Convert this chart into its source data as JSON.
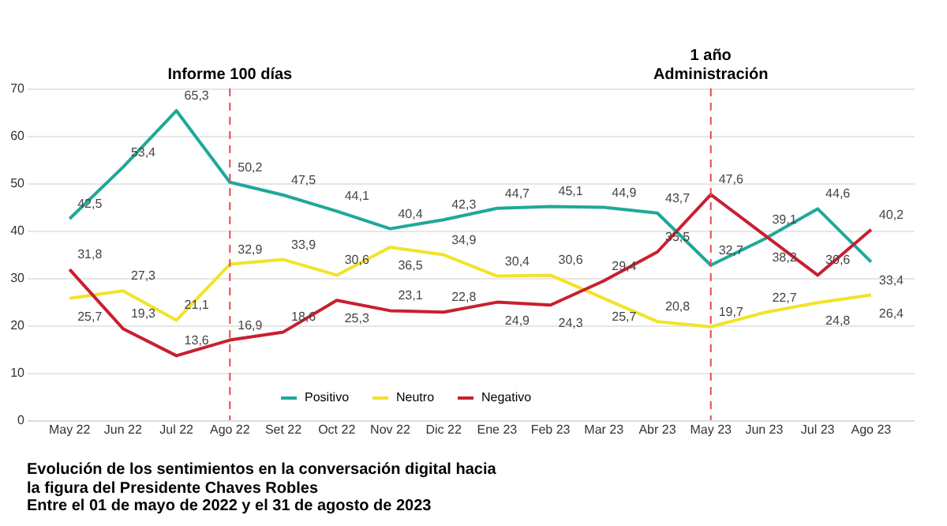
{
  "chart_data": {
    "type": "line",
    "title": "Evolución de los sentimientos en la conversación digital hacia la figura del Presidente Chaves Robles",
    "subtitle": "Entre el 01 de mayo de 2022 y el 31 de agosto de 2023",
    "categories": [
      "May 22",
      "Jun 22",
      "Jul 22",
      "Ago 22",
      "Set 22",
      "Oct 22",
      "Nov 22",
      "Dic 22",
      "Ene 23",
      "Feb 23",
      "Mar 23",
      "Abr 23",
      "May 23",
      "Jun 23",
      "Jul 23",
      "Ago 23"
    ],
    "series": [
      {
        "name": "Positivo",
        "color": "#1fa898",
        "values": [
          42.5,
          53.4,
          65.3,
          50.2,
          47.5,
          44.1,
          40.4,
          42.3,
          44.7,
          45.1,
          44.9,
          43.7,
          32.7,
          38.2,
          44.6,
          33.4
        ],
        "value_labels": [
          "42,5",
          "53,4",
          "65,3",
          "50,2",
          "47,5",
          "44,1",
          "40,4",
          "42,3",
          "44,7",
          "45,1",
          "44,9",
          "43,7",
          "32,7",
          "38,2",
          "44,6",
          "33,4"
        ]
      },
      {
        "name": "Neutro",
        "color": "#f2e32a",
        "values": [
          25.7,
          27.3,
          21.1,
          32.9,
          33.9,
          30.6,
          36.5,
          34.9,
          30.4,
          30.6,
          25.7,
          20.8,
          19.7,
          22.7,
          24.8,
          26.4
        ],
        "value_labels": [
          "25,7",
          "27,3",
          "21,1",
          "32,9",
          "33,9",
          "30,6",
          "36,5",
          "34,9",
          "30,4",
          "30,6",
          "25,7",
          "20,8",
          "19,7",
          "22,7",
          "24,8",
          "26,4"
        ]
      },
      {
        "name": "Negativo",
        "color": "#c8202f",
        "values": [
          31.8,
          19.3,
          13.6,
          16.9,
          18.6,
          25.3,
          23.1,
          22.8,
          24.9,
          24.3,
          29.4,
          35.5,
          47.6,
          39.1,
          30.6,
          40.2
        ],
        "value_labels": [
          "31,8",
          "19,3",
          "13,6",
          "16,9",
          "18,6",
          "25,3",
          "23,1",
          "22,8",
          "24,9",
          "24,3",
          "29,4",
          "35,5",
          "47,6",
          "39,1",
          "30,6",
          "40,2"
        ]
      }
    ],
    "ylim": [
      0,
      70
    ],
    "yticks": [
      0,
      10,
      20,
      30,
      40,
      50,
      60,
      70
    ],
    "grid": "y",
    "legend": "bottom",
    "data_labels": true,
    "line_style": "solid",
    "marker": "none",
    "ref_lines": [
      {
        "axis": "x",
        "value": "Ago 22",
        "label": "Informe 100 días",
        "color": "#e8474f",
        "line_style": "dashed"
      },
      {
        "axis": "x",
        "value": "May 23",
        "label": "1 año Administración",
        "color": "#e8474f",
        "line_style": "dashed"
      }
    ]
  }
}
